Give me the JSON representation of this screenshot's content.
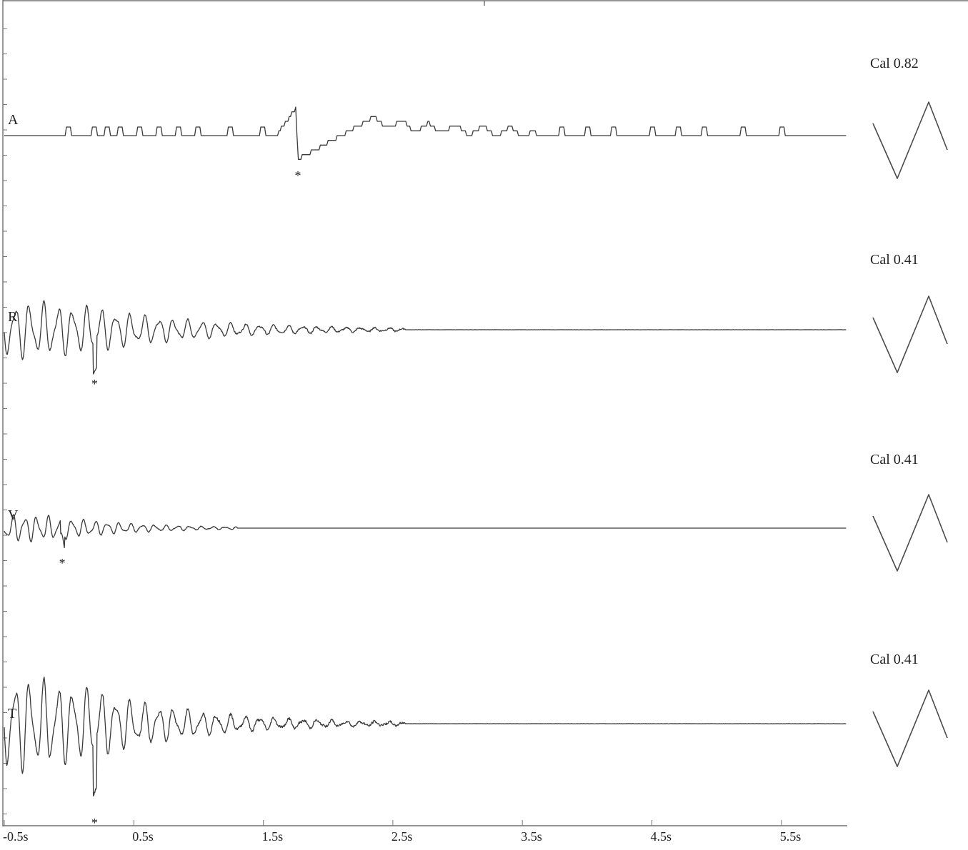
{
  "chart_data": {
    "type": "line",
    "xaxis": {
      "ticks": [
        "-0.5s",
        "0.5s",
        "1.5s",
        "2.5s",
        "3.5s",
        "4.5s",
        "5.5s"
      ],
      "tick_values": [
        -0.5,
        0.5,
        1.5,
        2.5,
        3.5,
        4.5,
        5.5
      ],
      "range": [
        -0.5,
        6.0
      ],
      "unit": "s"
    },
    "channels": [
      {
        "name": "A",
        "calibration": "Cal 0.82",
        "peak_marker": "*",
        "peak_time": 1.77,
        "waveform": {
          "kind": "stepped",
          "baseline": 0.0,
          "onset": 1.6,
          "peak_min": -0.82,
          "peak_max": 0.95,
          "decay_end": 3.6,
          "spikes": [
            0.0,
            0.2,
            0.3,
            0.4,
            0.55,
            0.7,
            0.85,
            1.0,
            1.25,
            1.5,
            3.8,
            4.0,
            4.2,
            4.5,
            4.7,
            4.9,
            5.2,
            5.5
          ]
        }
      },
      {
        "name": "R",
        "calibration": "Cal 0.41",
        "peak_marker": "*",
        "peak_time": 0.2,
        "waveform": {
          "kind": "oscillation",
          "amplitude": 1.0,
          "frequency_hz": 9,
          "decay_s": 0.9,
          "end": 2.6
        }
      },
      {
        "name": "V",
        "calibration": "Cal 0.41",
        "peak_marker": "*",
        "peak_time": -0.05,
        "waveform": {
          "kind": "oscillation",
          "amplitude": 0.6,
          "frequency_hz": 11,
          "decay_s": 0.6,
          "end": 1.3
        }
      },
      {
        "name": "T",
        "calibration": "Cal 0.41",
        "peak_marker": "*",
        "peak_time": 0.2,
        "waveform": {
          "kind": "oscillation",
          "amplitude": 1.0,
          "frequency_hz": 9,
          "decay_s": 0.8,
          "end": 2.6
        }
      }
    ]
  }
}
